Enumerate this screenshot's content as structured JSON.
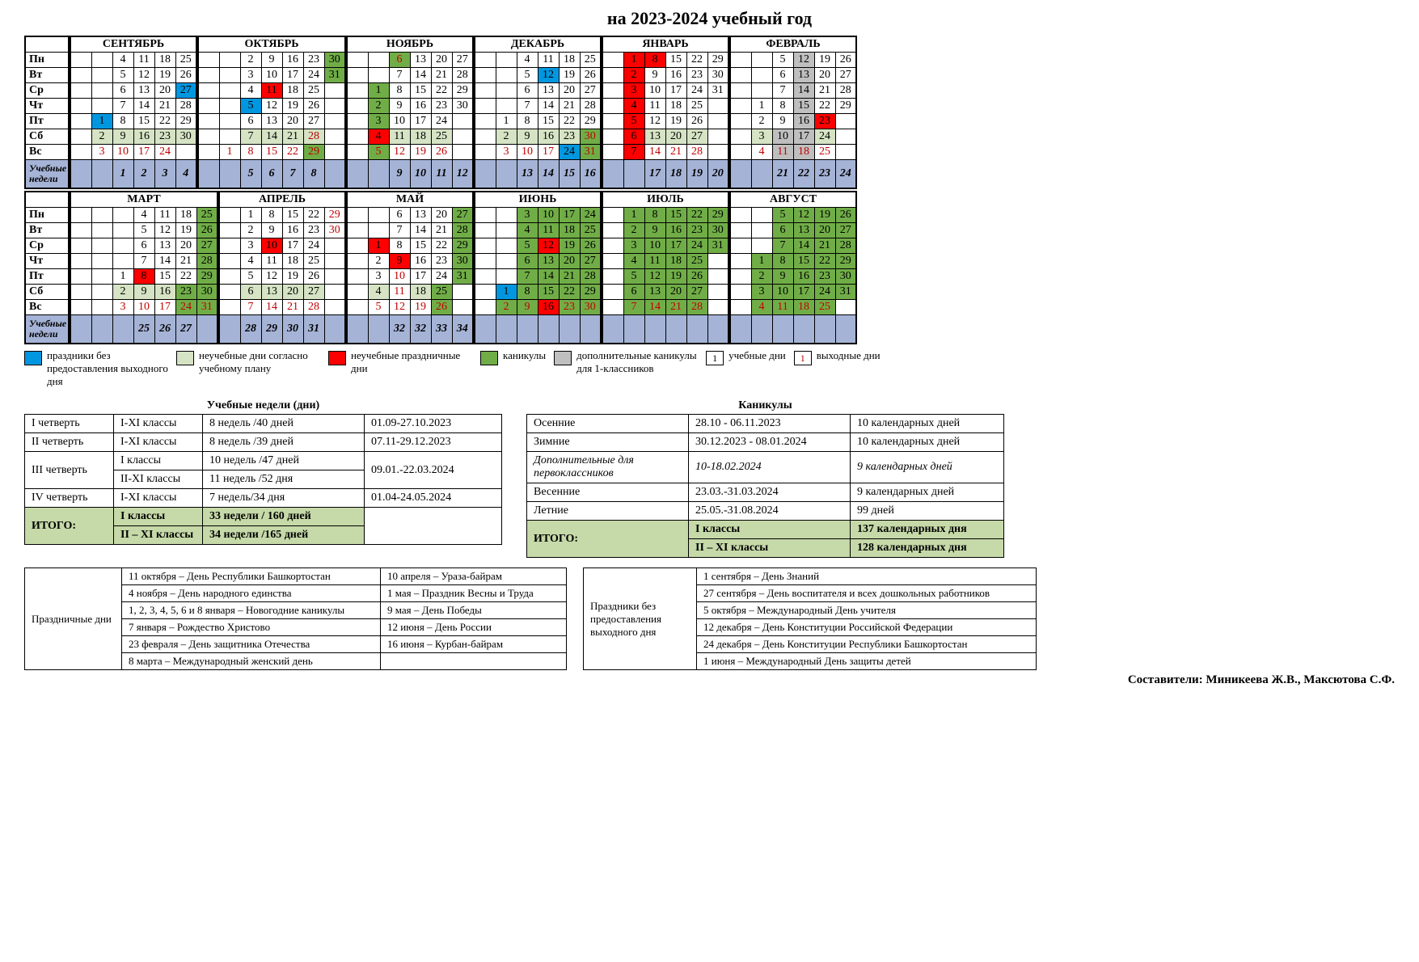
{
  "title": "на 2023-2024 учебный год",
  "dows": [
    "Пн",
    "Вт",
    "Ср",
    "Чт",
    "Пт",
    "Сб",
    "Вс"
  ],
  "weeks_label": "Учебные недели",
  "colors": {
    "blue": "#0097e0",
    "red": "#ff0000",
    "green": "#70ad47",
    "lgreen": "#d6e3c4",
    "grey": "#bfbfbf",
    "weekrow": "#a5b3d6",
    "redtext": "#c00000",
    "total": "#c6d9a8"
  },
  "semester1": [
    {
      "name": "СЕНТЯБРЬ",
      "cols": 5,
      "cells": [
        [
          "",
          "4",
          "11",
          "18",
          "25"
        ],
        [
          "",
          "5",
          "12",
          "19",
          "26"
        ],
        [
          "",
          "6",
          "13",
          "20",
          "27:blue"
        ],
        [
          "",
          "7",
          "14",
          "21",
          "28"
        ],
        [
          "1:blue",
          "8",
          "15",
          "22",
          "29"
        ],
        [
          "2:lgreen",
          "9:lgreen",
          "16:lgreen",
          "23:lgreen",
          "30:lgreen"
        ],
        [
          "3:red",
          "10:red",
          "17:red",
          "24:red",
          ""
        ]
      ],
      "weeks": [
        "",
        "1",
        "2",
        "3",
        "4"
      ]
    },
    {
      "name": "ОКТЯБРЬ",
      "cols": 6,
      "cells": [
        [
          "",
          "2",
          "9",
          "16",
          "23",
          "30:green"
        ],
        [
          "",
          "3",
          "10",
          "17",
          "24",
          "31:green"
        ],
        [
          "",
          "4",
          "11:redbg",
          "18",
          "25",
          ""
        ],
        [
          "",
          "5:blue",
          "12",
          "19",
          "26",
          ""
        ],
        [
          "",
          "6",
          "13",
          "20",
          "27",
          ""
        ],
        [
          "",
          "7:lgreen",
          "14:lgreen",
          "21:lgreen",
          "28:redg",
          ""
        ],
        [
          "1:red",
          "8:red",
          "15:red",
          "22:red",
          "29:greenr",
          ""
        ]
      ],
      "weeks": [
        "",
        "5",
        "6",
        "7",
        "8",
        ""
      ]
    },
    {
      "name": "НОЯБРЬ",
      "cols": 5,
      "cells": [
        [
          "",
          "6:greenr",
          "13",
          "20",
          "27"
        ],
        [
          "",
          "7",
          "14",
          "21",
          "28"
        ],
        [
          "1:green",
          "8",
          "15",
          "22",
          "29"
        ],
        [
          "2:green",
          "9",
          "16",
          "23",
          "30"
        ],
        [
          "3:green",
          "10",
          "17",
          "24",
          ""
        ],
        [
          "4:redbg",
          "11:lgreen",
          "18:lgreen",
          "25:lgreen",
          ""
        ],
        [
          "5:greenr",
          "12:red",
          "19:red",
          "26:red",
          ""
        ]
      ],
      "weeks": [
        "",
        "9",
        "10",
        "11",
        "12"
      ]
    },
    {
      "name": "ДЕКАБРЬ",
      "cols": 5,
      "cells": [
        [
          "",
          "4",
          "11",
          "18",
          "25"
        ],
        [
          "",
          "5",
          "12:blue",
          "19",
          "26"
        ],
        [
          "",
          "6",
          "13",
          "20",
          "27"
        ],
        [
          "",
          "7",
          "14",
          "21",
          "28"
        ],
        [
          "1",
          "8",
          "15",
          "22",
          "29"
        ],
        [
          "2:lgreen",
          "9:lgreen",
          "16:lgreen",
          "23:lgreen",
          "30:greenr"
        ],
        [
          "3:red",
          "10:red",
          "17:red",
          "24:blue",
          "31:greenr"
        ]
      ],
      "weeks": [
        "",
        "13",
        "14",
        "15",
        "16"
      ]
    },
    {
      "name": "ЯНВАРЬ",
      "cols": 5,
      "cells": [
        [
          "1:redbg",
          "8:redbg",
          "15",
          "22",
          "29"
        ],
        [
          "2:redbg",
          "9",
          "16",
          "23",
          "30"
        ],
        [
          "3:redbg",
          "10",
          "17",
          "24",
          "31"
        ],
        [
          "4:redbg",
          "11",
          "18",
          "25",
          ""
        ],
        [
          "5:redbg",
          "12",
          "19",
          "26",
          ""
        ],
        [
          "6:redbg",
          "13:lgreen",
          "20:lgreen",
          "27:lgreen",
          ""
        ],
        [
          "7:redbg",
          "14:red",
          "21:red",
          "28:red",
          ""
        ]
      ],
      "weeks": [
        "",
        "17",
        "18",
        "19",
        "20"
      ]
    },
    {
      "name": "ФЕВРАЛЬ",
      "cols": 5,
      "cells": [
        [
          "",
          "5",
          "12:grey",
          "19",
          "26"
        ],
        [
          "",
          "6",
          "13:grey",
          "20",
          "27"
        ],
        [
          "",
          "7",
          "14:grey",
          "21",
          "28"
        ],
        [
          "1",
          "8",
          "15:grey",
          "22",
          "29"
        ],
        [
          "2",
          "9",
          "16:grey",
          "23:redbg",
          ""
        ],
        [
          "3:lgreen",
          "10:grey",
          "17:grey",
          "24:lgreen",
          ""
        ],
        [
          "4:red",
          "11:greyr",
          "18:greyr",
          "25:red",
          ""
        ]
      ],
      "weeks": [
        "",
        "21",
        "22",
        "23",
        "24"
      ]
    }
  ],
  "semester2": [
    {
      "name": "МАРТ",
      "cols": 6,
      "cells": [
        [
          "",
          "",
          "4",
          "11",
          "18",
          "25:green"
        ],
        [
          "",
          "",
          "5",
          "12",
          "19",
          "26:green"
        ],
        [
          "",
          "",
          "6",
          "13",
          "20",
          "27:green"
        ],
        [
          "",
          "",
          "7",
          "14",
          "21",
          "28:green"
        ],
        [
          "",
          "1",
          "8:redbg",
          "15",
          "22",
          "29:green"
        ],
        [
          "",
          "2:lgreen",
          "9:lgreen",
          "16:lgreen",
          "23:green",
          "30:green"
        ],
        [
          "",
          "3:red",
          "10:red",
          "17:red",
          "24:greenr",
          "31:greenr"
        ]
      ],
      "weeks": [
        "",
        "",
        "25",
        "26",
        "27",
        ""
      ]
    },
    {
      "name": "АПРЕЛЬ",
      "cols": 5,
      "cells": [
        [
          "1",
          "8",
          "15",
          "22",
          "29:red"
        ],
        [
          "2",
          "9",
          "16",
          "23",
          "30:red"
        ],
        [
          "3",
          "10:redbg",
          "17",
          "24",
          ""
        ],
        [
          "4",
          "11",
          "18",
          "25",
          ""
        ],
        [
          "5",
          "12",
          "19",
          "26",
          ""
        ],
        [
          "6:lgreen",
          "13:lgreen",
          "20:lgreen",
          "27:lgreen",
          ""
        ],
        [
          "7:red",
          "14:red",
          "21:red",
          "28:red",
          ""
        ]
      ],
      "weeks": [
        "28",
        "29",
        "30",
        "31",
        ""
      ]
    },
    {
      "name": "МАЙ",
      "cols": 5,
      "cells": [
        [
          "",
          "6",
          "13",
          "20",
          "27:green"
        ],
        [
          "",
          "7",
          "14",
          "21",
          "28:green"
        ],
        [
          "1:redbg",
          "8",
          "15",
          "22",
          "29:green"
        ],
        [
          "2",
          "9:redbg",
          "16",
          "23",
          "30:green"
        ],
        [
          "3",
          "10:red",
          "17",
          "24",
          "31:green"
        ],
        [
          "4:lgreen",
          "11:red",
          "18:lgreen",
          "25:green",
          ""
        ],
        [
          "5:red",
          "12:red",
          "19:red",
          "26:greenr",
          ""
        ]
      ],
      "weeks": [
        "",
        "32",
        "32",
        "33",
        "34"
      ]
    },
    {
      "name": "ИЮНЬ",
      "cols": 5,
      "cells": [
        [
          "",
          "3:green",
          "10:green",
          "17:green",
          "24:green"
        ],
        [
          "",
          "4:green",
          "11:green",
          "18:green",
          "25:green"
        ],
        [
          "",
          "5:green",
          "12:redbg",
          "19:green",
          "26:green"
        ],
        [
          "",
          "6:green",
          "13:green",
          "20:green",
          "27:green"
        ],
        [
          "",
          "7:green",
          "14:green",
          "21:green",
          "28:green"
        ],
        [
          "1:blue",
          "8:green",
          "15:green",
          "22:green",
          "29:green"
        ],
        [
          "2:greenr",
          "9:greenr",
          "16:redbg",
          "23:greenr",
          "30:greenr"
        ]
      ],
      "weeks": [
        "",
        "",
        "",
        "",
        ""
      ]
    },
    {
      "name": "ИЮЛЬ",
      "cols": 5,
      "cells": [
        [
          "1:green",
          "8:green",
          "15:green",
          "22:green",
          "29:green"
        ],
        [
          "2:green",
          "9:green",
          "16:green",
          "23:green",
          "30:green"
        ],
        [
          "3:green",
          "10:green",
          "17:green",
          "24:green",
          "31:green"
        ],
        [
          "4:green",
          "11:green",
          "18:green",
          "25:green",
          ""
        ],
        [
          "5:green",
          "12:green",
          "19:green",
          "26:green",
          ""
        ],
        [
          "6:green",
          "13:green",
          "20:green",
          "27:green",
          ""
        ],
        [
          "7:greenr",
          "14:greenr",
          "21:greenr",
          "28:greenr",
          ""
        ]
      ],
      "weeks": [
        "",
        "",
        "",
        "",
        ""
      ]
    },
    {
      "name": "АВГУСТ",
      "cols": 5,
      "cells": [
        [
          "",
          "5:green",
          "12:green",
          "19:green",
          "26:green"
        ],
        [
          "",
          "6:green",
          "13:green",
          "20:green",
          "27:green"
        ],
        [
          "",
          "7:green",
          "14:green",
          "21:green",
          "28:green"
        ],
        [
          "1:green",
          "8:green",
          "15:green",
          "22:green",
          "29:green"
        ],
        [
          "2:green",
          "9:green",
          "16:green",
          "23:green",
          "30:green"
        ],
        [
          "3:green",
          "10:green",
          "17:green",
          "24:green",
          "31:green"
        ],
        [
          "4:greenr",
          "11:greenr",
          "18:greenr",
          "25:greenr",
          ""
        ]
      ],
      "weeks": [
        "",
        "",
        "",
        "",
        ""
      ]
    }
  ],
  "legend": [
    {
      "color": "#0097e0",
      "text": "праздники без предоставления выходного дня"
    },
    {
      "color": "#d6e3c4",
      "text": "неучебные дни согласно учебному плану"
    },
    {
      "color": "#ff0000",
      "text": "неучебные праздничные дни"
    },
    {
      "color": "#70ad47",
      "text": "каникулы"
    },
    {
      "color": "#bfbfbf",
      "text": "дополнительные каникулы для 1-классников"
    },
    {
      "cell": "1",
      "textcolor": "#000",
      "text": "учебные дни"
    },
    {
      "cell": "1",
      "textcolor": "#c00000",
      "text": "выходные дни"
    }
  ],
  "studyweeks": {
    "title": "Учебные недели (дни)",
    "rows": [
      [
        "I четверть",
        "I-XI классы",
        "8 недель /40 дней",
        "01.09-27.10.2023"
      ],
      [
        "II четверть",
        "I-XI классы",
        "8 недель /39 дней",
        "07.11-29.12.2023"
      ],
      [
        "III четверть",
        "I классы",
        "10 недель /47 дней",
        "09.01.-22.03.2024",
        "rowspan"
      ],
      [
        "",
        "II-XI классы",
        "11 недель /52 дня",
        ""
      ],
      [
        "IV четверть",
        "I-XI классы",
        "7 недель/34 дня",
        "01.04-24.05.2024"
      ],
      [
        "ИТОГО:",
        "I классы",
        "33 недели / 160 дней",
        "",
        "total rowspan"
      ],
      [
        "",
        "II –  XI классы",
        "34 недели /165 дней",
        "",
        "total"
      ]
    ]
  },
  "vacations": {
    "title": "Каникулы",
    "rows": [
      [
        "Осенние",
        "28.10 - 06.11.2023",
        "10 календарных дней"
      ],
      [
        "Зимние",
        "30.12.2023 - 08.01.2024",
        "10 календарных дней"
      ],
      [
        "Дополнительные для первоклассников",
        "10-18.02.2024",
        "9 календарных дней",
        "ital"
      ],
      [
        "Весенние",
        "23.03.-31.03.2024",
        "9 календарных дней"
      ],
      [
        "Летние",
        "25.05.-31.08.2024",
        "99 дней"
      ],
      [
        "ИТОГО:",
        "I классы",
        "137 календарных дня",
        "total rowspan"
      ],
      [
        "",
        "II –  XI классы",
        "128 календарных дня",
        "total"
      ]
    ]
  },
  "holidays1": {
    "label": "Праздничные дни",
    "col1": [
      "11 октября – День Республики Башкортостан",
      "4 ноября – День народного единства",
      "1, 2, 3, 4, 5, 6 и 8 января – Новогодние каникулы",
      "7 января – Рождество Христово",
      "23 февраля – День защитника Отечества",
      "8 марта – Международный женский день"
    ],
    "col2": [
      "10 апреля – Ураза-байрам",
      "1 мая – Праздник Весны и Труда",
      "9 мая – День Победы",
      "12 июня – День России",
      "16 июня – Курбан-байрам"
    ]
  },
  "holidays2": {
    "label": "Праздники без предоставления выходного дня",
    "items": [
      "1 сентября – День Знаний",
      "27 сентября – День воспитателя и всех дошкольных работников",
      "5 октября – Международный День учителя",
      "12 декабря – День Конституции Российской Федерации",
      "24 декабря – День Конституции Республики Башкортостан",
      "1 июня – Международный День защиты детей"
    ]
  },
  "footer": "Составители: Миникеева Ж.В., Максютова С.Ф."
}
